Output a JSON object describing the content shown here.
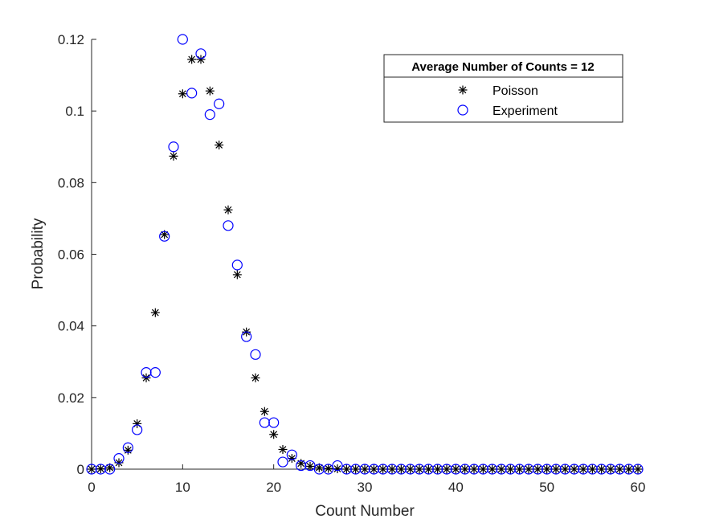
{
  "chart_data": {
    "type": "scatter",
    "xlabel": "Count Number",
    "ylabel": "Probability",
    "xlim": [
      0,
      60
    ],
    "ylim": [
      0,
      0.12
    ],
    "xticks": [
      "0",
      "10",
      "20",
      "30",
      "40",
      "50",
      "60"
    ],
    "yticks": [
      "0",
      "0.02",
      "0.04",
      "0.06",
      "0.08",
      "0.1",
      "0.12"
    ],
    "grid": false,
    "legend": {
      "title": "Average Number of Counts = 12",
      "placement": "top-right"
    },
    "series": [
      {
        "name": "Poisson",
        "marker": "asterisk",
        "color": "#000000",
        "x": [
          0,
          1,
          2,
          3,
          4,
          5,
          6,
          7,
          8,
          9,
          10,
          11,
          12,
          13,
          14,
          15,
          16,
          17,
          18,
          19,
          20,
          21,
          22,
          23,
          24,
          25,
          26,
          27,
          28,
          29,
          30,
          31,
          32,
          33,
          34,
          35,
          36,
          37,
          38,
          39,
          40,
          41,
          42,
          43,
          44,
          45,
          46,
          47,
          48,
          49,
          50,
          51,
          52,
          53,
          54,
          55,
          56,
          57,
          58,
          59,
          60
        ],
        "y": [
          0.0,
          0.0001,
          0.0004,
          0.0018,
          0.0053,
          0.0127,
          0.0255,
          0.0437,
          0.0655,
          0.0874,
          0.1048,
          0.1144,
          0.1144,
          0.1056,
          0.0905,
          0.0724,
          0.0543,
          0.0383,
          0.0255,
          0.0161,
          0.0097,
          0.0055,
          0.003,
          0.0016,
          0.0008,
          0.0004,
          0.0002,
          0.0001,
          0,
          0,
          0,
          0,
          0,
          0,
          0,
          0,
          0,
          0,
          0,
          0,
          0,
          0,
          0,
          0,
          0,
          0,
          0,
          0,
          0,
          0,
          0,
          0,
          0,
          0,
          0,
          0,
          0,
          0,
          0,
          0,
          0
        ]
      },
      {
        "name": "Experiment",
        "marker": "circle",
        "color": "#0000ff",
        "x": [
          0,
          1,
          2,
          3,
          4,
          5,
          6,
          7,
          8,
          9,
          10,
          11,
          12,
          13,
          14,
          15,
          16,
          17,
          18,
          19,
          20,
          21,
          22,
          23,
          24,
          25,
          26,
          27,
          28,
          29,
          30,
          31,
          32,
          33,
          34,
          35,
          36,
          37,
          38,
          39,
          40,
          41,
          42,
          43,
          44,
          45,
          46,
          47,
          48,
          49,
          50,
          51,
          52,
          53,
          54,
          55,
          56,
          57,
          58,
          59,
          60
        ],
        "y": [
          0,
          0,
          0,
          0.003,
          0.006,
          0.011,
          0.027,
          0.027,
          0.065,
          0.09,
          0.12,
          0.105,
          0.116,
          0.099,
          0.102,
          0.068,
          0.057,
          0.037,
          0.032,
          0.013,
          0.013,
          0.002,
          0.004,
          0.001,
          0.001,
          0,
          0,
          0.001,
          0,
          0,
          0,
          0,
          0,
          0,
          0,
          0,
          0,
          0,
          0,
          0,
          0,
          0,
          0,
          0,
          0,
          0,
          0,
          0,
          0,
          0,
          0,
          0,
          0,
          0,
          0,
          0,
          0,
          0,
          0,
          0,
          0
        ]
      }
    ]
  }
}
